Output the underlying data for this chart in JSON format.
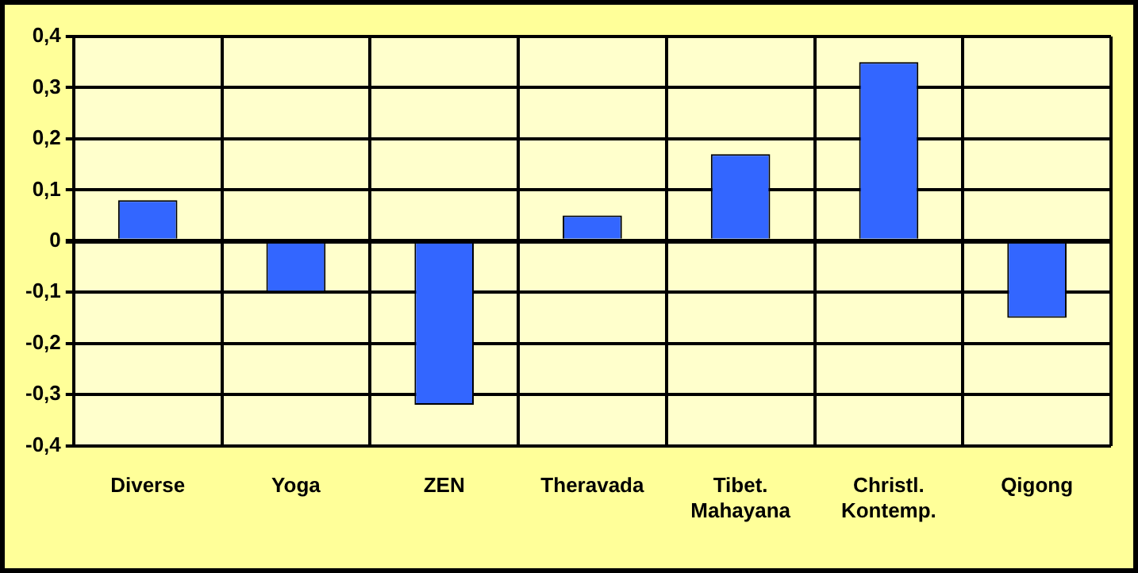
{
  "chart_data": {
    "type": "bar",
    "categories": [
      "Diverse",
      "Yoga",
      "ZEN",
      "Theravada",
      "Tibet.\nMahayana",
      "Christl.\nKontemp.",
      "Qigong"
    ],
    "values": [
      0.08,
      -0.1,
      -0.32,
      0.05,
      0.17,
      0.35,
      -0.15
    ],
    "color": "#3366ff",
    "ylim": [
      -0.4,
      0.4
    ],
    "yticks": [
      {
        "value": -0.4,
        "label": "-0,4"
      },
      {
        "value": -0.3,
        "label": "-0,3"
      },
      {
        "value": -0.2,
        "label": "-0,2"
      },
      {
        "value": -0.1,
        "label": "-0,1"
      },
      {
        "value": 0,
        "label": "0"
      },
      {
        "value": 0.1,
        "label": "0,1"
      },
      {
        "value": 0.2,
        "label": "0,2"
      },
      {
        "value": 0.3,
        "label": "0,3"
      },
      {
        "value": 0.4,
        "label": "0,4"
      }
    ],
    "grid": true
  }
}
